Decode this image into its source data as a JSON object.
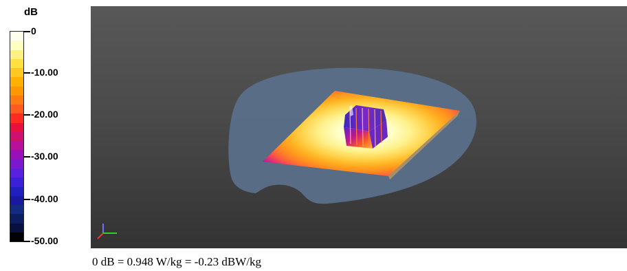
{
  "legend": {
    "unit": "dB",
    "ticks": [
      {
        "label": "0"
      },
      {
        "label": "-10.00"
      },
      {
        "label": "-20.00"
      },
      {
        "label": "-30.00"
      },
      {
        "label": "-40.00"
      },
      {
        "label": "-50.00"
      }
    ],
    "colors": [
      "#fffff0",
      "#ffffc0",
      "#fff080",
      "#ffe040",
      "#ffc820",
      "#ffb000",
      "#ff9800",
      "#ff7a10",
      "#ff5a20",
      "#ff2a20",
      "#e81040",
      "#d01070",
      "#b8109a",
      "#9a10b8",
      "#7a18d0",
      "#5a20e0",
      "#3a20d8",
      "#2020c0",
      "#1818a0",
      "#142c80",
      "#0c1e60",
      "#081040",
      "#000000"
    ]
  },
  "viewport": {
    "background": "#4a4a4a",
    "phantom_color": "#5a6f8a",
    "axis_colors": {
      "x": "#ff3030",
      "y": "#30d030",
      "z": "#7070ff"
    }
  },
  "footer": {
    "text": "0 dB = 0.948 W/kg = -0.23 dBW/kg"
  }
}
